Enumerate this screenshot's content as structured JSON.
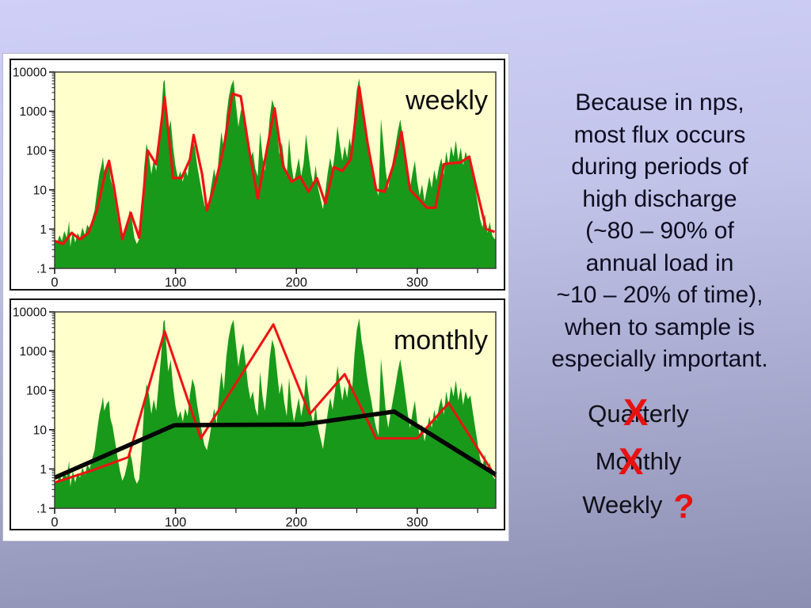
{
  "slide": {
    "background_top_color": "#cfcff8",
    "background_bottom_color": "#8c8eb1",
    "paragraph": {
      "lines": [
        "Because in nps,",
        "most flux occurs",
        "during periods of",
        "high discharge",
        "(~80 – 90% of",
        "annual load in",
        "~10 – 20% of time),",
        "when to sample is",
        "especially important."
      ]
    },
    "options": {
      "items": [
        {
          "label": "Quarterly",
          "mark": "X"
        },
        {
          "label": "Monthly",
          "mark": "X"
        },
        {
          "label": "Weekly",
          "mark": "?"
        }
      ],
      "mark_color": "#e81111"
    }
  },
  "chart_shared": {
    "daily_flux_points": [
      [
        0,
        0.5
      ],
      [
        2,
        0.45
      ],
      [
        4,
        0.7
      ],
      [
        6,
        0.5
      ],
      [
        8,
        0.9
      ],
      [
        10,
        0.6
      ],
      [
        12,
        1.6
      ],
      [
        13,
        0.35
      ],
      [
        15,
        0.9
      ],
      [
        17,
        0.45
      ],
      [
        19,
        0.8
      ],
      [
        21,
        0.6
      ],
      [
        23,
        1.1
      ],
      [
        25,
        0.7
      ],
      [
        27,
        1.3
      ],
      [
        29,
        1.0
      ],
      [
        31,
        1.8
      ],
      [
        33,
        3
      ],
      [
        35,
        9
      ],
      [
        37,
        25
      ],
      [
        39,
        45
      ],
      [
        40,
        70
      ],
      [
        41,
        30
      ],
      [
        43,
        45
      ],
      [
        45,
        55
      ],
      [
        46,
        20
      ],
      [
        48,
        12
      ],
      [
        50,
        5
      ],
      [
        52,
        2
      ],
      [
        54,
        0.9
      ],
      [
        56,
        0.5
      ],
      [
        58,
        0.7
      ],
      [
        60,
        1.3
      ],
      [
        62,
        3
      ],
      [
        64,
        1.6
      ],
      [
        66,
        0.6
      ],
      [
        68,
        0.42
      ],
      [
        70,
        0.55
      ],
      [
        72,
        3
      ],
      [
        74,
        35
      ],
      [
        76,
        150
      ],
      [
        78,
        80
      ],
      [
        80,
        25
      ],
      [
        82,
        60
      ],
      [
        84,
        30
      ],
      [
        86,
        140
      ],
      [
        88,
        700
      ],
      [
        90,
        5500
      ],
      [
        91,
        6300
      ],
      [
        92,
        2000
      ],
      [
        94,
        300
      ],
      [
        96,
        600
      ],
      [
        98,
        120
      ],
      [
        100,
        40
      ],
      [
        102,
        20
      ],
      [
        104,
        30
      ],
      [
        106,
        16
      ],
      [
        108,
        35
      ],
      [
        110,
        22
      ],
      [
        112,
        80
      ],
      [
        114,
        200
      ],
      [
        116,
        120
      ],
      [
        118,
        40
      ],
      [
        120,
        18
      ],
      [
        122,
        8
      ],
      [
        124,
        4
      ],
      [
        126,
        3
      ],
      [
        128,
        6
      ],
      [
        130,
        15
      ],
      [
        132,
        35
      ],
      [
        134,
        14
      ],
      [
        136,
        80
      ],
      [
        138,
        300
      ],
      [
        140,
        100
      ],
      [
        142,
        700
      ],
      [
        144,
        2200
      ],
      [
        146,
        4500
      ],
      [
        148,
        6300
      ],
      [
        150,
        1500
      ],
      [
        152,
        400
      ],
      [
        154,
        1000
      ],
      [
        156,
        1600
      ],
      [
        158,
        500
      ],
      [
        160,
        130
      ],
      [
        162,
        60
      ],
      [
        164,
        95
      ],
      [
        166,
        35
      ],
      [
        168,
        22
      ],
      [
        170,
        300
      ],
      [
        172,
        70
      ],
      [
        174,
        30
      ],
      [
        176,
        130
      ],
      [
        178,
        700
      ],
      [
        180,
        2000
      ],
      [
        182,
        1200
      ],
      [
        184,
        300
      ],
      [
        186,
        80
      ],
      [
        188,
        160
      ],
      [
        190,
        50
      ],
      [
        192,
        22
      ],
      [
        194,
        210
      ],
      [
        196,
        40
      ],
      [
        198,
        16
      ],
      [
        200,
        32
      ],
      [
        202,
        65
      ],
      [
        204,
        22
      ],
      [
        206,
        48
      ],
      [
        208,
        260
      ],
      [
        210,
        80
      ],
      [
        212,
        28
      ],
      [
        214,
        14
      ],
      [
        216,
        42
      ],
      [
        218,
        11
      ],
      [
        220,
        6
      ],
      [
        222,
        3.2
      ],
      [
        224,
        9
      ],
      [
        226,
        28
      ],
      [
        228,
        65
      ],
      [
        230,
        32
      ],
      [
        232,
        95
      ],
      [
        234,
        420
      ],
      [
        236,
        140
      ],
      [
        238,
        55
      ],
      [
        240,
        130
      ],
      [
        242,
        65
      ],
      [
        244,
        210
      ],
      [
        246,
        90
      ],
      [
        248,
        800
      ],
      [
        250,
        3500
      ],
      [
        252,
        6800
      ],
      [
        254,
        1800
      ],
      [
        256,
        800
      ],
      [
        258,
        280
      ],
      [
        260,
        110
      ],
      [
        262,
        55
      ],
      [
        264,
        22
      ],
      [
        266,
        11
      ],
      [
        268,
        7
      ],
      [
        270,
        650
      ],
      [
        272,
        140
      ],
      [
        274,
        30
      ],
      [
        276,
        11
      ],
      [
        278,
        26
      ],
      [
        280,
        60
      ],
      [
        282,
        130
      ],
      [
        284,
        320
      ],
      [
        286,
        620
      ],
      [
        288,
        240
      ],
      [
        290,
        85
      ],
      [
        292,
        28
      ],
      [
        294,
        11
      ],
      [
        296,
        26
      ],
      [
        298,
        55
      ],
      [
        300,
        16
      ],
      [
        302,
        7
      ],
      [
        304,
        14
      ],
      [
        306,
        5
      ],
      [
        308,
        10
      ],
      [
        310,
        22
      ],
      [
        312,
        11
      ],
      [
        314,
        32
      ],
      [
        316,
        17
      ],
      [
        318,
        38
      ],
      [
        320,
        65
      ],
      [
        322,
        24
      ],
      [
        324,
        95
      ],
      [
        326,
        42
      ],
      [
        328,
        130
      ],
      [
        330,
        70
      ],
      [
        332,
        180
      ],
      [
        334,
        55
      ],
      [
        336,
        120
      ],
      [
        338,
        42
      ],
      [
        340,
        95
      ],
      [
        342,
        60
      ],
      [
        344,
        75
      ],
      [
        346,
        28
      ],
      [
        348,
        11
      ],
      [
        350,
        4.5
      ],
      [
        352,
        1.8
      ],
      [
        354,
        1.1
      ],
      [
        356,
        2.4
      ],
      [
        358,
        0.8
      ],
      [
        360,
        1.5
      ],
      [
        362,
        0.7
      ],
      [
        364,
        0.55
      ],
      [
        365,
        0.6
      ]
    ]
  },
  "chart_data": [
    {
      "type": "area",
      "title": "weekly",
      "xlim": [
        0,
        365
      ],
      "ylim": [
        0.1,
        10000
      ],
      "y_scale": "log",
      "x_ticks": [
        0,
        100,
        200,
        300
      ],
      "x_minor_ticks": [
        50,
        150,
        250,
        350
      ],
      "y_ticks": [
        10000,
        1000,
        100,
        10,
        1,
        0.1
      ],
      "y_tick_labels": [
        "10000",
        "1000",
        "100",
        "10",
        "1",
        ".1"
      ],
      "plot_bg": "#ffffcb",
      "series": [
        {
          "name": "daily-flux-area",
          "type": "area",
          "color": "#18991a",
          "points": "$daily"
        },
        {
          "name": "weekly-samples-line",
          "type": "line",
          "color": "#ee1212",
          "width": 3.2,
          "points": [
            [
              0,
              0.5
            ],
            [
              7,
              0.42
            ],
            [
              14,
              0.8
            ],
            [
              21,
              0.55
            ],
            [
              28,
              0.8
            ],
            [
              35,
              3
            ],
            [
              42,
              28
            ],
            [
              45,
              55
            ],
            [
              49,
              12
            ],
            [
              56,
              0.55
            ],
            [
              63,
              2.6
            ],
            [
              70,
              0.6
            ],
            [
              77,
              100
            ],
            [
              84,
              45
            ],
            [
              91,
              2300
            ],
            [
              98,
              20
            ],
            [
              105,
              20
            ],
            [
              112,
              60
            ],
            [
              115,
              250
            ],
            [
              122,
              25
            ],
            [
              126,
              3
            ],
            [
              133,
              15
            ],
            [
              140,
              120
            ],
            [
              147,
              2800
            ],
            [
              154,
              2400
            ],
            [
              161,
              100
            ],
            [
              168,
              6
            ],
            [
              175,
              85
            ],
            [
              182,
              1200
            ],
            [
              189,
              40
            ],
            [
              196,
              16
            ],
            [
              203,
              22
            ],
            [
              210,
              9
            ],
            [
              217,
              20
            ],
            [
              224,
              4.5
            ],
            [
              231,
              38
            ],
            [
              238,
              30
            ],
            [
              245,
              60
            ],
            [
              252,
              4200
            ],
            [
              259,
              150
            ],
            [
              266,
              10
            ],
            [
              273,
              9
            ],
            [
              280,
              40
            ],
            [
              287,
              300
            ],
            [
              294,
              10
            ],
            [
              301,
              6
            ],
            [
              308,
              3.5
            ],
            [
              315,
              3.5
            ],
            [
              322,
              45
            ],
            [
              329,
              48
            ],
            [
              336,
              50
            ],
            [
              343,
              70
            ],
            [
              350,
              8
            ],
            [
              357,
              1
            ],
            [
              364,
              0.85
            ]
          ]
        }
      ]
    },
    {
      "type": "area",
      "title": "monthly",
      "xlim": [
        0,
        365
      ],
      "ylim": [
        0.1,
        10000
      ],
      "y_scale": "log",
      "x_ticks": [
        0,
        100,
        200,
        300
      ],
      "x_minor_ticks": [
        50,
        150,
        250,
        350
      ],
      "y_ticks": [
        10000,
        1000,
        100,
        10,
        1,
        0.1
      ],
      "y_tick_labels": [
        "10000",
        "1000",
        "100",
        "10",
        "1",
        ".1"
      ],
      "plot_bg": "#ffffcb",
      "series": [
        {
          "name": "daily-flux-area",
          "type": "area",
          "color": "#18991a",
          "points": "$daily"
        },
        {
          "name": "monthly-samples-line",
          "type": "line",
          "color": "#ee1212",
          "width": 3,
          "points": [
            [
              0,
              0.45
            ],
            [
              30,
              0.9
            ],
            [
              61,
              2
            ],
            [
              91,
              3200
            ],
            [
              121,
              6
            ],
            [
              181,
              4800
            ],
            [
              211,
              25
            ],
            [
              240,
              260
            ],
            [
              266,
              6
            ],
            [
              300,
              6
            ],
            [
              326,
              48
            ],
            [
              365,
              0.62
            ]
          ]
        },
        {
          "name": "quarterly-samples-line",
          "type": "line",
          "color": "#000000",
          "width": 5.5,
          "points": [
            [
              0,
              0.6
            ],
            [
              99,
              13
            ],
            [
              205,
              13.5
            ],
            [
              281,
              29
            ],
            [
              365,
              0.72
            ]
          ]
        }
      ]
    }
  ]
}
